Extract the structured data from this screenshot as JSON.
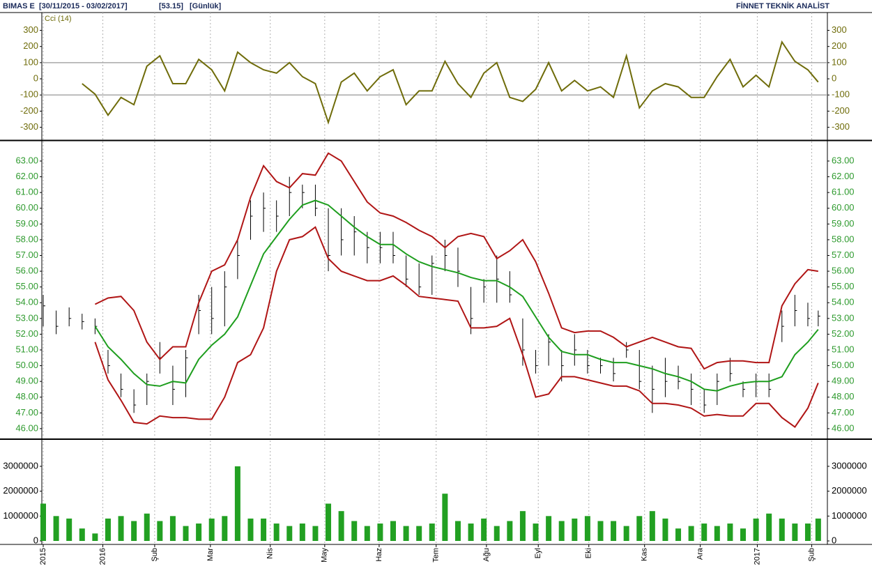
{
  "header": {
    "symbol": "BIMAS E",
    "period": "[30/11/2015 - 03/02/2017]",
    "last": "[53.15]",
    "interval": "[Günlük]",
    "source": "FİNNET TEKNİK ANALİST"
  },
  "chart_data": [
    {
      "type": "line",
      "title": "Cci (14)",
      "color": "#6f6c0a",
      "axis_color": "#6f6c0a",
      "x": [
        0,
        5,
        10,
        15,
        20,
        25,
        30,
        35,
        40,
        45,
        50,
        55,
        60,
        65,
        70,
        75,
        80,
        85,
        90,
        95,
        100,
        105,
        110,
        115,
        120,
        125,
        130,
        135,
        140,
        145,
        150,
        155,
        160,
        165,
        170,
        175,
        180,
        185,
        190,
        195,
        200,
        205,
        210,
        215,
        220,
        225,
        230,
        235,
        240,
        245,
        250,
        255,
        260,
        265,
        270,
        275,
        280,
        285,
        290,
        295,
        299
      ],
      "values": [
        null,
        null,
        null,
        -30,
        -95,
        -225,
        -115,
        -160,
        78,
        142,
        -30,
        -30,
        120,
        56,
        -75,
        165,
        100,
        56,
        35,
        100,
        13,
        -30,
        -270,
        -20,
        35,
        -75,
        13,
        56,
        -160,
        -75,
        -75,
        108,
        -30,
        -115,
        35,
        100,
        -115,
        -140,
        -65,
        100,
        -75,
        -10,
        -75,
        -50,
        -115,
        142,
        -180,
        -75,
        -30,
        -50,
        -115,
        -115,
        13,
        120,
        -50,
        22,
        -50,
        228,
        108,
        56,
        -20
      ],
      "xlim": [
        0,
        302
      ],
      "ylim": [
        -375,
        410
      ],
      "yticks": [
        300,
        200,
        100,
        0,
        -100,
        -200,
        -300
      ],
      "reference_lines": [
        100,
        -100
      ],
      "reference_color": "#a8a8a8",
      "x_grid": true
    },
    {
      "type": "ohlc",
      "color": "#000000",
      "axis_color": "#2e9a2e",
      "band_color": "#b01515",
      "middle_color": "#1e9e1e",
      "x": [
        0,
        5,
        10,
        15,
        20,
        25,
        30,
        35,
        40,
        45,
        50,
        55,
        60,
        65,
        70,
        75,
        80,
        85,
        90,
        95,
        100,
        105,
        110,
        115,
        120,
        125,
        130,
        135,
        140,
        145,
        150,
        155,
        160,
        165,
        170,
        175,
        180,
        185,
        190,
        195,
        200,
        205,
        210,
        215,
        220,
        225,
        230,
        235,
        240,
        245,
        250,
        255,
        260,
        265,
        270,
        275,
        280,
        285,
        290,
        295,
        299
      ],
      "high": [
        54.5,
        53.5,
        53.7,
        53.3,
        53.0,
        51.0,
        49.5,
        48.5,
        49.5,
        51.5,
        50,
        51,
        54.5,
        55,
        56,
        58,
        60.5,
        61,
        60.5,
        62,
        61.5,
        61.5,
        60,
        60,
        59.5,
        58.5,
        58.5,
        58.5,
        57,
        56.5,
        57,
        58,
        57.5,
        55,
        55.5,
        57,
        56,
        53,
        51,
        52,
        51,
        52,
        51,
        50.5,
        50.5,
        51.5,
        51,
        50,
        50.5,
        50,
        49.5,
        48.5,
        49.5,
        50.5,
        49,
        49.5,
        49.5,
        53.5,
        54.5,
        54,
        53.5
      ],
      "low": [
        52.5,
        52.0,
        52.5,
        52.3,
        52.0,
        49.5,
        48,
        47,
        47.5,
        49.5,
        47.5,
        48,
        52,
        52,
        52.5,
        55.5,
        58,
        58.5,
        58.5,
        59.5,
        60,
        59.5,
        56,
        57,
        57,
        56.5,
        56.5,
        56.5,
        55,
        54.5,
        54.5,
        56,
        55,
        52,
        54,
        54,
        54,
        50,
        49.5,
        50,
        49,
        50,
        49.5,
        49.5,
        49,
        50.5,
        48.5,
        47,
        48,
        48.5,
        47.5,
        47,
        47.5,
        49,
        48,
        48,
        48,
        51.5,
        52.5,
        52.5,
        52.5
      ],
      "close": [
        53.8,
        52.5,
        53.0,
        52.8,
        52.5,
        50.0,
        48.5,
        47.5,
        49.0,
        50.5,
        48.5,
        50.5,
        53.5,
        53,
        55,
        57,
        59.5,
        60,
        59.5,
        61,
        61,
        60,
        57,
        58,
        58.5,
        57.5,
        57.5,
        57,
        55.5,
        55,
        56.5,
        57,
        56,
        53,
        55,
        55.5,
        54.5,
        51,
        50,
        51.5,
        50,
        51,
        50,
        50,
        49.5,
        51,
        49,
        48.5,
        49,
        49,
        48.5,
        47.5,
        49,
        49.5,
        48.5,
        49,
        48.5,
        52.5,
        53.5,
        53,
        53.15
      ],
      "upper": [
        null,
        null,
        null,
        null,
        53.9,
        54.3,
        54.4,
        53.5,
        51.5,
        50.4,
        51.2,
        51.2,
        54.0,
        56.0,
        56.4,
        58.0,
        60.7,
        62.7,
        61.7,
        61.3,
        62.2,
        62.1,
        63.5,
        63.0,
        61.7,
        60.4,
        59.7,
        59.5,
        59.1,
        58.6,
        58.2,
        57.5,
        58.2,
        58.4,
        58.2,
        56.8,
        57.3,
        58.0,
        56.6,
        54.6,
        52.4,
        52.1,
        52.2,
        52.2,
        51.8,
        51.2,
        51.5,
        51.8,
        51.5,
        51.2,
        51.1,
        49.8,
        50.2,
        50.3,
        50.3,
        50.2,
        50.2,
        53.8,
        55.2,
        56.1,
        56.0
      ],
      "middle": [
        null,
        null,
        null,
        null,
        52.5,
        51.2,
        50.4,
        49.5,
        48.8,
        48.7,
        49.0,
        48.9,
        50.4,
        51.3,
        52.0,
        53.1,
        55.1,
        57.1,
        58.2,
        59.3,
        60.2,
        60.5,
        60.2,
        59.5,
        58.8,
        58.2,
        57.7,
        57.7,
        57.1,
        56.6,
        56.3,
        56.1,
        55.9,
        55.6,
        55.4,
        55.4,
        55.0,
        54.4,
        53.1,
        51.8,
        50.9,
        50.7,
        50.7,
        50.4,
        50.2,
        50.2,
        50.0,
        49.8,
        49.5,
        49.3,
        49.0,
        48.5,
        48.4,
        48.7,
        48.9,
        49.0,
        49.0,
        49.3,
        50.7,
        51.5,
        52.3
      ],
      "lower": [
        null,
        null,
        null,
        null,
        51.5,
        49.1,
        47.8,
        46.4,
        46.3,
        46.8,
        46.7,
        46.7,
        46.6,
        46.6,
        48.0,
        50.2,
        50.7,
        52.4,
        56.0,
        58.0,
        58.2,
        58.8,
        56.8,
        56.0,
        55.7,
        55.4,
        55.4,
        55.7,
        55.1,
        54.4,
        54.3,
        54.2,
        54.1,
        52.4,
        52.4,
        52.5,
        53.0,
        50.7,
        48.0,
        48.2,
        49.3,
        49.3,
        49.1,
        48.9,
        48.7,
        48.7,
        48.4,
        47.6,
        47.6,
        47.5,
        47.3,
        46.8,
        46.9,
        46.8,
        46.8,
        47.6,
        47.6,
        46.7,
        46.1,
        47.3,
        48.9
      ],
      "xlim": [
        0,
        302
      ],
      "ylim": [
        45.42,
        64.24
      ],
      "yticks": [
        {
          "value": 63,
          "label": "63.00"
        },
        {
          "value": 62,
          "label": "62.00"
        },
        {
          "value": 61,
          "label": "61.00"
        },
        {
          "value": 60,
          "label": "60.00"
        },
        {
          "value": 59,
          "label": "59.00"
        },
        {
          "value": 58,
          "label": "58.00"
        },
        {
          "value": 57,
          "label": "57.00"
        },
        {
          "value": 56,
          "label": "56.00"
        },
        {
          "value": 55,
          "label": "55.00"
        },
        {
          "value": 54,
          "label": "54.00"
        },
        {
          "value": 53,
          "label": "53.00"
        },
        {
          "value": 52,
          "label": "52.00"
        },
        {
          "value": 51,
          "label": "51.00"
        },
        {
          "value": 50,
          "label": "50.00"
        },
        {
          "value": 49,
          "label": "49.00"
        },
        {
          "value": 48,
          "label": "48.00"
        },
        {
          "value": 47,
          "label": "47.00"
        },
        {
          "value": 46,
          "label": "46.00"
        }
      ],
      "x_grid": true
    },
    {
      "type": "bar",
      "color": "#22a022",
      "axis_color": "#000000",
      "x": [
        0,
        5,
        10,
        15,
        20,
        25,
        30,
        35,
        40,
        45,
        50,
        55,
        60,
        65,
        70,
        75,
        80,
        85,
        90,
        95,
        100,
        105,
        110,
        115,
        120,
        125,
        130,
        135,
        140,
        145,
        150,
        155,
        160,
        165,
        170,
        175,
        180,
        185,
        190,
        195,
        200,
        205,
        210,
        215,
        220,
        225,
        230,
        235,
        240,
        245,
        250,
        255,
        260,
        265,
        270,
        275,
        280,
        285,
        290,
        295,
        299
      ],
      "values": [
        1500000,
        1000000,
        900000,
        500000,
        300000,
        900000,
        1000000,
        800000,
        1100000,
        800000,
        1000000,
        600000,
        700000,
        900000,
        1000000,
        3000000,
        900000,
        900000,
        700000,
        600000,
        700000,
        600000,
        1500000,
        1200000,
        800000,
        600000,
        700000,
        800000,
        600000,
        600000,
        700000,
        1900000,
        800000,
        700000,
        900000,
        600000,
        800000,
        1200000,
        700000,
        1000000,
        800000,
        900000,
        1000000,
        800000,
        800000,
        600000,
        1000000,
        1200000,
        900000,
        500000,
        600000,
        700000,
        600000,
        700000,
        500000,
        900000,
        1100000,
        900000,
        700000,
        700000,
        900000
      ],
      "xlim": [
        0,
        302
      ],
      "ylim": [
        -112000,
        4036000
      ],
      "yticks": [
        3000000,
        2000000,
        1000000,
        0
      ],
      "xticks": [
        {
          "value": 0,
          "label": "2015"
        },
        {
          "value": 23,
          "label": "2016"
        },
        {
          "value": 43,
          "label": "Şub"
        },
        {
          "value": 64.5,
          "label": "Mar"
        },
        {
          "value": 87.6,
          "label": "Nis"
        },
        {
          "value": 108.6,
          "label": "May"
        },
        {
          "value": 129.6,
          "label": "Haz"
        },
        {
          "value": 151.6,
          "label": "Tem"
        },
        {
          "value": 171,
          "label": "Ağu"
        },
        {
          "value": 191,
          "label": "Eyl"
        },
        {
          "value": 210.5,
          "label": "Eki"
        },
        {
          "value": 232,
          "label": "Kas"
        },
        {
          "value": 253.5,
          "label": "Ara"
        },
        {
          "value": 275.5,
          "label": "2017"
        },
        {
          "value": 296.5,
          "label": "Şub"
        }
      ],
      "x_grid": true
    }
  ]
}
